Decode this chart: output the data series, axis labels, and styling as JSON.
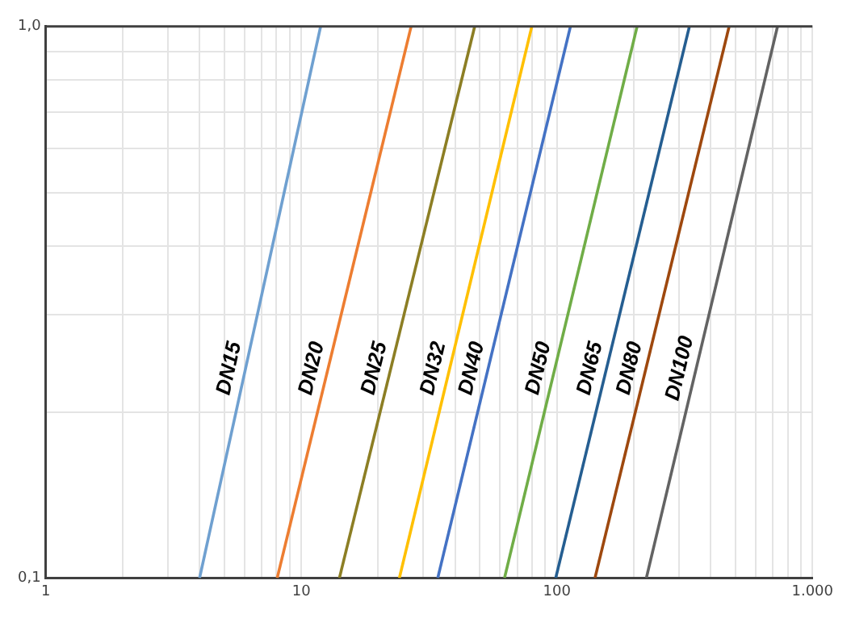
{
  "chart_data": {
    "type": "line",
    "log": "xy",
    "grid": true,
    "legend": false,
    "marker": "none",
    "line_style": "solid",
    "xlim": [
      1,
      1000
    ],
    "ylim": [
      0.1,
      1
    ],
    "xticks": [
      1,
      {
        "value": 2,
        "label": null
      },
      {
        "value": 3,
        "label": null
      },
      {
        "value": 4,
        "label": null
      },
      {
        "value": 5,
        "label": null
      },
      {
        "value": 6,
        "label": null
      },
      {
        "value": 7,
        "label": null
      },
      {
        "value": 8,
        "label": null
      },
      {
        "value": 9,
        "label": null
      },
      10,
      {
        "value": 20,
        "label": null
      },
      {
        "value": 30,
        "label": null
      },
      {
        "value": 40,
        "label": null
      },
      {
        "value": 50,
        "label": null
      },
      {
        "value": 60,
        "label": null
      },
      {
        "value": 70,
        "label": null
      },
      {
        "value": 80,
        "label": null
      },
      {
        "value": 90,
        "label": null
      },
      100,
      {
        "value": 200,
        "label": null
      },
      {
        "value": 300,
        "label": null
      },
      {
        "value": 400,
        "label": null
      },
      {
        "value": 500,
        "label": null
      },
      {
        "value": 600,
        "label": null
      },
      {
        "value": 700,
        "label": null
      },
      {
        "value": 800,
        "label": null
      },
      {
        "value": 900,
        "label": null
      },
      {
        "value": 1000,
        "label": "1.000"
      }
    ],
    "yticks": [
      {
        "value": 0.1,
        "label": "0,1"
      },
      {
        "value": 0.2,
        "label": null
      },
      {
        "value": 0.3,
        "label": null
      },
      {
        "value": 0.4,
        "label": null
      },
      {
        "value": 0.5,
        "label": null
      },
      {
        "value": 0.6,
        "label": null
      },
      {
        "value": 0.7,
        "label": null
      },
      {
        "value": 0.8,
        "label": null
      },
      {
        "value": 0.9,
        "label": null
      },
      {
        "value": 1,
        "label": "1,0"
      }
    ],
    "series": [
      {
        "name": "DN15",
        "color": "#6fa0d0",
        "x": [
          4.0,
          11.9
        ],
        "values": [
          0.1,
          1
        ]
      },
      {
        "name": "DN20",
        "color": "#ed7d31",
        "x": [
          8.05,
          26.9
        ],
        "values": [
          0.1,
          1
        ]
      },
      {
        "name": "DN25",
        "color": "#8c7e24",
        "x": [
          14.1,
          47.7
        ],
        "values": [
          0.1,
          1
        ]
      },
      {
        "name": "DN32",
        "color": "#ffc000",
        "x": [
          24.2,
          79.8
        ],
        "values": [
          0.1,
          1
        ]
      },
      {
        "name": "DN40",
        "color": "#4472c4",
        "x": [
          34.2,
          113
        ],
        "values": [
          0.1,
          1
        ]
      },
      {
        "name": "DN50",
        "color": "#70ad47",
        "x": [
          62.4,
          206
        ],
        "values": [
          0.1,
          1
        ]
      },
      {
        "name": "DN65",
        "color": "#255e91",
        "x": [
          99,
          330
        ],
        "values": [
          0.1,
          1
        ]
      },
      {
        "name": "DN80",
        "color": "#9e480e",
        "x": [
          141,
          472
        ],
        "values": [
          0.1,
          1
        ]
      },
      {
        "name": "DN100",
        "color": "#636363",
        "x": [
          224,
          730
        ],
        "values": [
          0.1,
          1
        ]
      }
    ]
  }
}
